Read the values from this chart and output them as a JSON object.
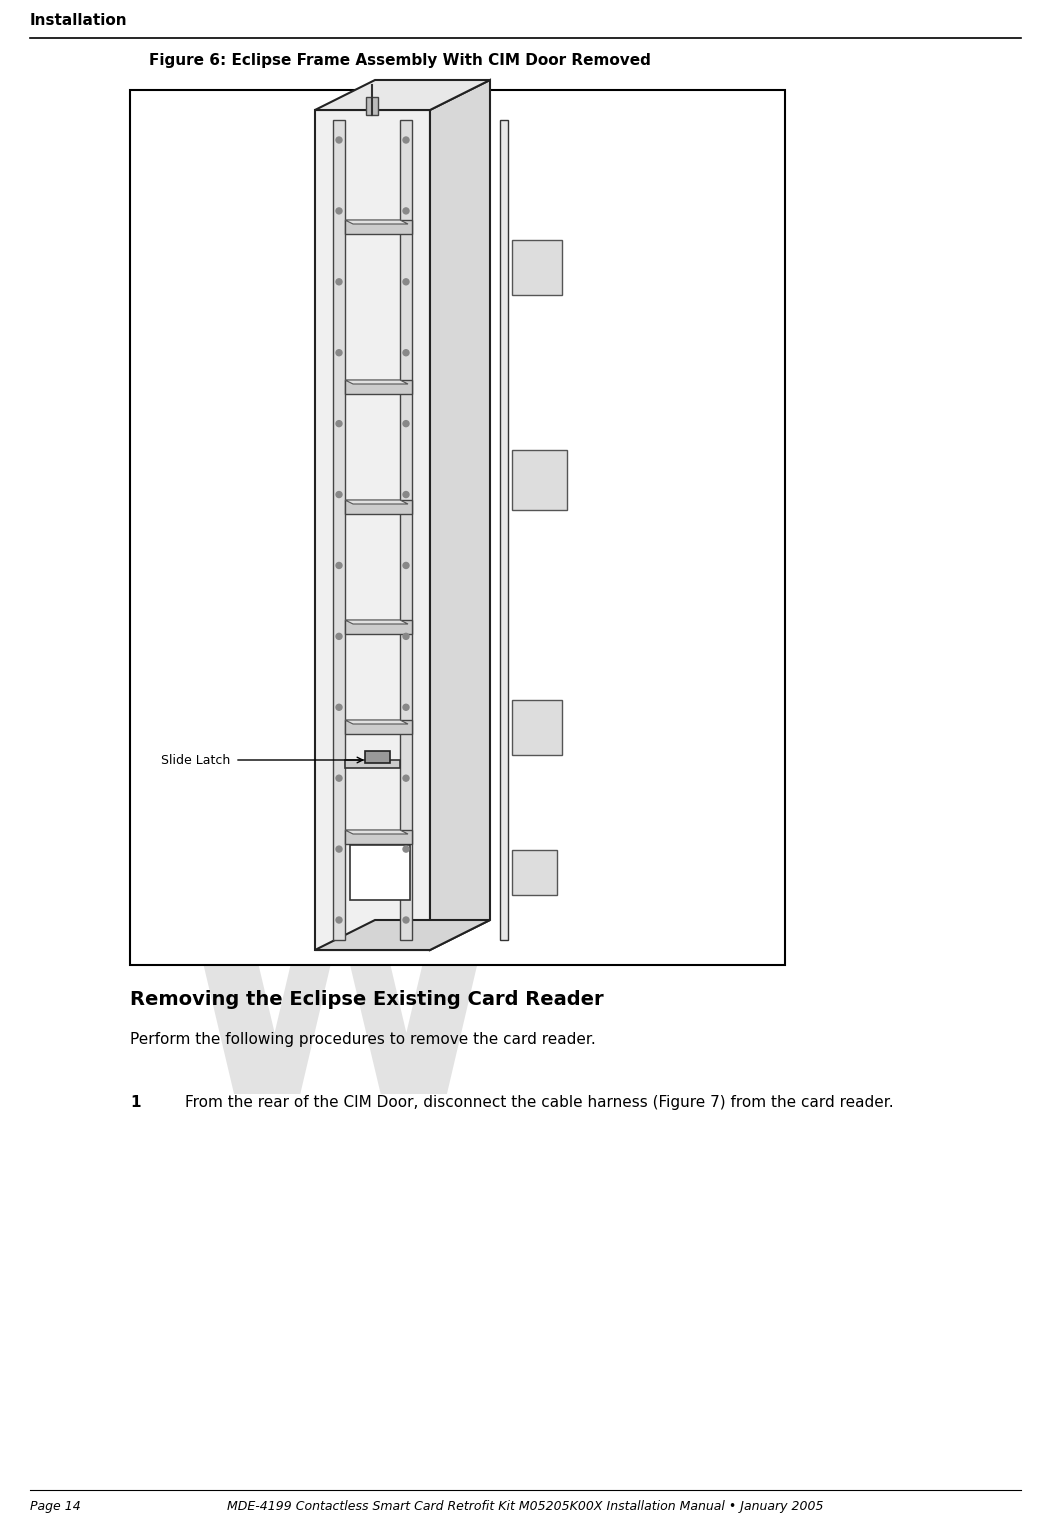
{
  "page_title": "Installation",
  "figure_title": "Figure 6: Eclipse Frame Assembly With CIM Door Removed",
  "section_heading": "Removing the Eclipse Existing Card Reader",
  "section_body": "Perform the following procedures to remove the card reader.",
  "step_number": "1",
  "step_text": "From the rear of the CIM Door, disconnect the cable harness (Figure 7) from the card reader.",
  "slide_latch_label": "Slide Latch",
  "footer_left": "Page 14",
  "footer_right": "MDE-4199 Contactless Smart Card Retrofit Kit M05205K00X Installation Manual • January 2005",
  "bg_color": "#ffffff",
  "text_color": "#000000",
  "watermark_color": "#c8c8c8",
  "diagram_bg": "#ffffff",
  "box_edge": "#000000"
}
